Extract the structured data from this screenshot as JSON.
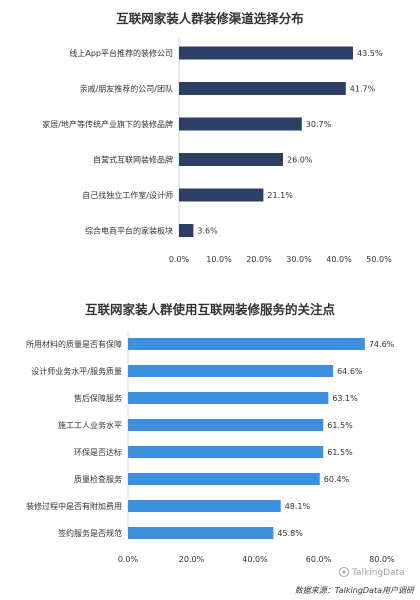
{
  "chart_data": [
    {
      "type": "bar",
      "orientation": "horizontal",
      "title": "互联网家装人群装修渠道选择分布",
      "categories": [
        "线上App平台推荐的装修公司",
        "亲戚/朋友推荐的公司/团队",
        "家居/地产等传统产业旗下的装修品牌",
        "自营式互联网装修品牌",
        "自己找独立工作室/设计师",
        "综合电商平台的家装板块"
      ],
      "values": [
        43.5,
        41.7,
        30.7,
        26.0,
        21.1,
        3.6
      ],
      "value_labels": [
        "43.5%",
        "41.7%",
        "30.7%",
        "26.0%",
        "21.1%",
        "3.6%"
      ],
      "xlim": [
        0,
        50
      ],
      "xticks": [
        "0.0%",
        "10.0%",
        "20.0%",
        "30.0%",
        "40.0%",
        "50.0%"
      ],
      "grid": false,
      "color": "#2e3f66"
    },
    {
      "type": "bar",
      "orientation": "horizontal",
      "title": "互联网家装人群使用互联网装修服务的关注点",
      "categories": [
        "所用材料的质量是否有保障",
        "设计师业务水平/服务质量",
        "售后保障服务",
        "施工工人业务水平",
        "环保是否达标",
        "质量检查服务",
        "装修过程中是否有附加费用",
        "签约服务是否规范"
      ],
      "values": [
        74.6,
        64.6,
        63.1,
        61.5,
        61.5,
        60.4,
        48.1,
        45.8
      ],
      "value_labels": [
        "74.6%",
        "64.6%",
        "63.1%",
        "61.5%",
        "61.5%",
        "60.4%",
        "48.1%",
        "45.8%"
      ],
      "xlim": [
        0,
        80
      ],
      "xticks": [
        "0.0%",
        "20.0%",
        "40.0%",
        "60.0%",
        "80.0%"
      ],
      "grid": false,
      "color": "#3d8fe0"
    }
  ],
  "footer": {
    "source": "数据来源：TalkingData用户调研",
    "brand": "TalkingData"
  }
}
